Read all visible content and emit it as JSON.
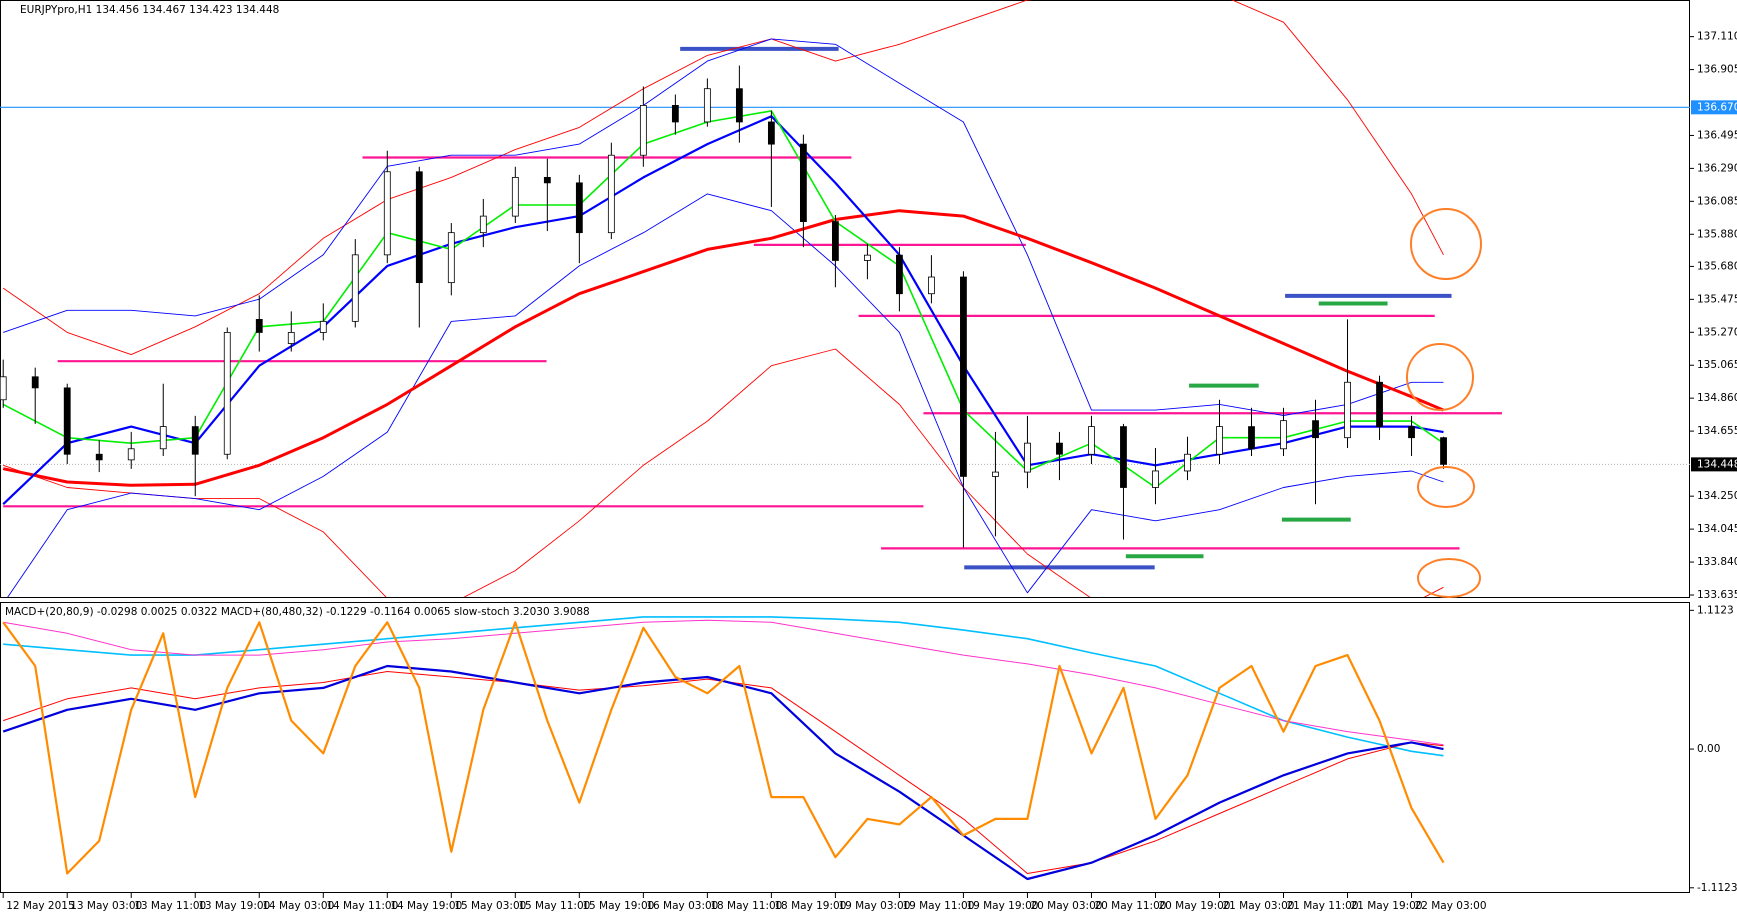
{
  "chart_data": [
    {
      "type": "candlestick",
      "title": "EURJPYpro,H1  134.456 134.467 134.423 134.448",
      "xlim": [
        -0.4,
        210.8
      ],
      "ylim": [
        133.635,
        137.338
      ],
      "yticks": [
        {
          "value": 137.11,
          "label": "137.110"
        },
        {
          "value": 136.905,
          "label": "136.905"
        },
        {
          "value": 136.495,
          "label": "136.495"
        },
        {
          "value": 136.29,
          "label": "136.290"
        },
        {
          "value": 136.085,
          "label": "136.085"
        },
        {
          "value": 135.88,
          "label": "135.880"
        },
        {
          "value": 135.68,
          "label": "135.680"
        },
        {
          "value": 135.475,
          "label": "135.475"
        },
        {
          "value": 135.27,
          "label": "135.270"
        },
        {
          "value": 135.065,
          "label": "135.065"
        },
        {
          "value": 134.86,
          "label": "134.860"
        },
        {
          "value": 134.655,
          "label": "134.655"
        },
        {
          "value": 134.25,
          "label": "134.250"
        },
        {
          "value": 134.045,
          "label": "134.045"
        },
        {
          "value": 133.84,
          "label": "133.840"
        },
        {
          "value": 133.635,
          "label": "133.635"
        }
      ],
      "up_color": "#ffffff",
      "down_color": "#000000",
      "x": [
        0,
        4,
        8,
        12,
        16,
        20,
        24,
        28,
        32,
        36,
        40,
        44,
        48,
        52,
        56,
        60,
        64,
        68,
        72,
        76,
        80,
        84,
        88,
        92,
        96,
        100,
        104,
        108,
        112,
        116,
        120,
        124,
        128,
        132,
        136,
        140,
        144,
        148,
        152,
        156,
        160,
        164,
        168,
        172,
        176,
        180
      ],
      "open": [
        134.85,
        134.993,
        134.924,
        134.511,
        134.476,
        134.545,
        134.683,
        134.511,
        135.35,
        135.2,
        135.269,
        135.338,
        135.752,
        136.269,
        135.579,
        135.89,
        135.993,
        136.234,
        136.2,
        135.89,
        136.372,
        136.682,
        136.579,
        136.786,
        136.579,
        136.441,
        135.959,
        135.717,
        135.75,
        135.51,
        135.614,
        134.373,
        134.4,
        134.58,
        134.511,
        134.683,
        134.304,
        134.407,
        134.511,
        134.683,
        134.545,
        134.72,
        134.614,
        134.959,
        134.683,
        134.614
      ],
      "high": [
        135.1,
        135.05,
        134.95,
        134.6,
        134.65,
        134.95,
        134.75,
        135.3,
        135.5,
        135.4,
        135.45,
        135.85,
        136.4,
        136.3,
        135.95,
        136.1,
        136.3,
        136.35,
        136.25,
        136.45,
        136.8,
        136.75,
        136.85,
        136.93,
        136.65,
        136.5,
        136.0,
        135.82,
        135.8,
        135.75,
        135.65,
        134.65,
        134.75,
        134.65,
        134.75,
        134.7,
        134.55,
        134.62,
        134.85,
        134.8,
        134.8,
        134.85,
        135.35,
        135.0,
        134.75,
        134.62
      ],
      "low": [
        134.8,
        134.7,
        134.45,
        134.4,
        134.42,
        134.5,
        134.25,
        134.48,
        135.15,
        135.15,
        135.22,
        135.3,
        135.7,
        135.3,
        135.5,
        135.8,
        135.95,
        135.9,
        135.7,
        135.85,
        136.3,
        136.5,
        136.55,
        136.45,
        136.05,
        135.8,
        135.55,
        135.6,
        135.4,
        135.45,
        133.93,
        134.0,
        134.3,
        134.35,
        134.45,
        133.98,
        134.2,
        134.35,
        134.45,
        134.5,
        134.5,
        134.2,
        134.55,
        134.6,
        134.5,
        134.42
      ],
      "close": [
        134.993,
        134.924,
        134.511,
        134.476,
        134.545,
        134.683,
        134.511,
        135.269,
        135.269,
        135.269,
        135.338,
        135.752,
        136.269,
        135.579,
        135.89,
        135.993,
        136.234,
        136.2,
        135.89,
        136.372,
        136.682,
        136.579,
        136.786,
        136.579,
        136.441,
        135.959,
        135.717,
        135.75,
        135.51,
        135.614,
        134.373,
        134.4,
        134.58,
        134.511,
        134.683,
        134.304,
        134.407,
        134.511,
        134.683,
        134.545,
        134.72,
        134.614,
        134.959,
        134.683,
        134.614,
        134.448
      ],
      "indicators": {
        "x": [
          0,
          8,
          16,
          24,
          32,
          40,
          48,
          56,
          64,
          72,
          80,
          88,
          96,
          104,
          112,
          120,
          128,
          136,
          144,
          152,
          160,
          168,
          176,
          180
        ],
        "series": [
          {
            "color": "#ff0000",
            "width": 0.9,
            "values": [
              135.545,
              135.269,
              135.131,
              135.304,
              135.51,
              135.855,
              136.096,
              136.234,
              136.407,
              136.545,
              136.786,
              136.993,
              137.096,
              136.958,
              137.062,
              137.2,
              137.338,
              137.372,
              137.372,
              137.372,
              137.2,
              136.717,
              136.131,
              135.752
            ]
          },
          {
            "color": "#ff0000",
            "width": 0.9,
            "values": [
              134.442,
              134.304,
              134.269,
              134.235,
              134.235,
              134.028,
              133.614,
              133.58,
              133.787,
              134.097,
              134.442,
              134.717,
              135.062,
              135.166,
              134.821,
              134.304,
              133.89,
              133.614,
              133.338,
              133.269,
              133.269,
              133.338,
              133.58,
              133.683
            ]
          },
          {
            "color": "#0000ff",
            "width": 0.9,
            "values": [
              135.269,
              135.407,
              135.407,
              135.372,
              135.476,
              135.752,
              136.303,
              136.372,
              136.372,
              136.441,
              136.682,
              136.958,
              137.096,
              137.062,
              136.82,
              136.579,
              135.752,
              134.786,
              134.786,
              134.821,
              134.752,
              134.821,
              134.959,
              134.959
            ]
          },
          {
            "color": "#0000ff",
            "width": 0.9,
            "values": [
              133.58,
              134.166,
              134.269,
              134.235,
              134.166,
              134.373,
              134.649,
              135.338,
              135.372,
              135.683,
              135.89,
              136.131,
              136.027,
              135.683,
              135.269,
              134.304,
              133.649,
              134.166,
              134.097,
              134.166,
              134.304,
              134.373,
              134.407,
              134.338
            ]
          },
          {
            "color": "#ff0000",
            "width": 3,
            "values": [
              134.421,
              134.338,
              134.318,
              134.324,
              134.442,
              134.614,
              134.821,
              135.062,
              135.304,
              135.51,
              135.648,
              135.786,
              135.855,
              135.972,
              136.027,
              135.993,
              135.855,
              135.703,
              135.545,
              135.372,
              135.2,
              135.028,
              134.869,
              134.786
            ]
          },
          {
            "color": "#0000ff",
            "width": 2.2,
            "values": [
              134.2,
              134.58,
              134.683,
              134.58,
              135.062,
              135.304,
              135.683,
              135.821,
              135.924,
              135.993,
              136.234,
              136.441,
              136.614,
              136.2,
              135.752,
              135.062,
              134.442,
              134.511,
              134.442,
              134.511,
              134.58,
              134.683,
              134.683,
              134.649
            ]
          },
          {
            "color": "#00ee00",
            "width": 1.6,
            "values": [
              134.821,
              134.614,
              134.58,
              134.614,
              135.304,
              135.338,
              135.89,
              135.786,
              136.062,
              136.062,
              136.441,
              136.579,
              136.648,
              135.959,
              135.683,
              134.786,
              134.407,
              134.58,
              134.304,
              134.614,
              134.614,
              134.717,
              134.717,
              134.58
            ]
          }
        ]
      },
      "levels": [
        {
          "price": 136.358,
          "from": 44.9,
          "to": 106.0,
          "color": "#ff1493"
        },
        {
          "price": 135.09,
          "from": 6.8,
          "to": 67.9,
          "color": "#ff1493"
        },
        {
          "price": 134.187,
          "from": 0,
          "to": 115.0,
          "color": "#ff1493"
        },
        {
          "price": 135.814,
          "from": 93.8,
          "to": 127.8,
          "color": "#ff1493"
        },
        {
          "price": 135.372,
          "from": 106.9,
          "to": 178.9,
          "color": "#ff1493"
        },
        {
          "price": 134.766,
          "from": 115.0,
          "to": 187.3,
          "color": "#ff1493"
        },
        {
          "price": 133.925,
          "from": 109.7,
          "to": 182.0,
          "color": "#ff1493"
        },
        {
          "price": 137.034,
          "from": 84.6,
          "to": 104.4,
          "color": "#3a52c6"
        },
        {
          "price": 135.497,
          "from": 160.2,
          "to": 181.0,
          "color": "#3a52c6"
        },
        {
          "price": 133.807,
          "from": 120.1,
          "to": 143.9,
          "color": "#3a52c6"
        },
        {
          "price": 135.449,
          "from": 164.4,
          "to": 173.0,
          "color": "#28a745"
        },
        {
          "price": 134.938,
          "from": 148.2,
          "to": 156.9,
          "color": "#28a745"
        },
        {
          "price": 134.104,
          "from": 159.8,
          "to": 168.4,
          "color": "#28a745"
        },
        {
          "price": 133.876,
          "from": 140.3,
          "to": 150.0,
          "color": "#28a745"
        }
      ],
      "price_lines": [
        {
          "value": 136.67,
          "label": "136.670",
          "color": "#1e90ff",
          "label_bg": "#1e90ff",
          "dotted": false
        },
        {
          "value": 134.448,
          "label": "134.448",
          "color": "#b0b0b0",
          "label_bg": "#000000",
          "dotted": true
        }
      ]
    },
    {
      "type": "line",
      "title": "MACD+(20,80,9) -0.0298 0.0025 0.0322  MACD+(80,480,32) -0.1229 -0.1164 0.0065  slow-stoch 3.2030 3.9088",
      "xlim": [
        -0.4,
        210.8
      ],
      "ylim": [
        -1.13,
        1.147
      ],
      "yticks": [
        1.1123,
        {
          "value": 0,
          "label": "0.00"
        },
        -1.1123
      ],
      "xticks": [
        {
          "value": 0,
          "label": "12 May 2015"
        },
        {
          "value": 8,
          "label": "13 May 03:00"
        },
        {
          "value": 16,
          "label": "13 May 11:00"
        },
        {
          "value": 24,
          "label": "13 May 19:00"
        },
        {
          "value": 32,
          "label": "14 May 03:00"
        },
        {
          "value": 40,
          "label": "14 May 11:00"
        },
        {
          "value": 48,
          "label": "14 May 19:00"
        },
        {
          "value": 56,
          "label": "15 May 03:00"
        },
        {
          "value": 64,
          "label": "15 May 11:00"
        },
        {
          "value": 72,
          "label": "15 May 19:00"
        },
        {
          "value": 80,
          "label": "16 May 03:00"
        },
        {
          "value": 88,
          "label": "18 May 11:00"
        },
        {
          "value": 96,
          "label": "18 May 19:00"
        },
        {
          "value": 104,
          "label": "19 May 03:00"
        },
        {
          "value": 112,
          "label": "19 May 11:00"
        },
        {
          "value": 120,
          "label": "19 May 19:00"
        },
        {
          "value": 128,
          "label": "20 May 03:00"
        },
        {
          "value": 136,
          "label": "20 May 11:00"
        },
        {
          "value": 144,
          "label": "20 May 19:00"
        },
        {
          "value": 152,
          "label": "21 May 03:00"
        },
        {
          "value": 160,
          "label": "21 May 11:00"
        },
        {
          "value": 168,
          "label": "21 May 19:00"
        },
        {
          "value": 176,
          "label": "22 May 03:00"
        }
      ],
      "x": [
        0,
        8,
        16,
        24,
        32,
        40,
        48,
        56,
        64,
        72,
        80,
        88,
        96,
        104,
        112,
        120,
        128,
        136,
        144,
        152,
        160,
        168,
        176,
        180
      ],
      "series": [
        {
          "color": "#00bfff",
          "width": 1.6,
          "values": [
            0.841,
            0.797,
            0.753,
            0.753,
            0.797,
            0.841,
            0.885,
            0.928,
            0.972,
            1.016,
            1.06,
            1.06,
            1.06,
            1.042,
            1.016,
            0.954,
            0.885,
            0.771,
            0.666,
            0.447,
            0.228,
            0.096,
            -0.018,
            -0.053
          ]
        },
        {
          "color": "#ff33cc",
          "width": 1,
          "values": [
            1.016,
            0.928,
            0.797,
            0.753,
            0.753,
            0.797,
            0.858,
            0.885,
            0.928,
            0.972,
            1.016,
            1.033,
            1.016,
            0.928,
            0.841,
            0.753,
            0.683,
            0.596,
            0.49,
            0.359,
            0.228,
            0.14,
            0.07,
            0.035
          ]
        },
        {
          "color": "#ff0000",
          "width": 1,
          "values": [
            0.228,
            0.403,
            0.49,
            0.403,
            0.49,
            0.534,
            0.622,
            0.578,
            0.534,
            0.473,
            0.508,
            0.561,
            0.49,
            0.14,
            -0.21,
            -0.56,
            -0.998,
            -0.911,
            -0.736,
            -0.517,
            -0.298,
            -0.079,
            0.053,
            0.026
          ]
        },
        {
          "color": "#0000dd",
          "width": 2.2,
          "values": [
            0.14,
            0.315,
            0.403,
            0.315,
            0.447,
            0.49,
            0.666,
            0.622,
            0.534,
            0.447,
            0.534,
            0.578,
            0.447,
            -0.035,
            -0.342,
            -0.692,
            -1.042,
            -0.911,
            -0.692,
            -0.429,
            -0.21,
            -0.035,
            0.053,
            0.0
          ]
        }
      ],
      "oscillator": {
        "x": [
          0,
          4,
          8,
          12,
          16,
          20,
          24,
          28,
          32,
          36,
          40,
          44,
          48,
          52,
          56,
          60,
          64,
          68,
          72,
          76,
          80,
          84,
          88,
          92,
          96,
          100,
          104,
          108,
          112,
          116,
          120,
          124,
          128,
          132,
          136,
          140,
          144,
          148,
          152,
          156,
          160,
          164,
          168,
          172,
          176,
          180
        ],
        "color": "#ff8c00",
        "width": 2.2,
        "values": [
          1.016,
          0.666,
          -0.998,
          -0.736,
          0.315,
          0.928,
          -0.385,
          0.49,
          1.016,
          0.228,
          -0.035,
          0.666,
          1.016,
          0.49,
          -0.823,
          0.315,
          1.016,
          0.228,
          -0.429,
          0.315,
          0.972,
          0.578,
          0.447,
          0.666,
          -0.385,
          -0.385,
          -0.867,
          -0.56,
          -0.604,
          -0.385,
          -0.692,
          -0.56,
          -0.56,
          0.666,
          -0.035,
          0.49,
          -0.56,
          -0.21,
          0.49,
          0.666,
          0.14,
          0.666,
          0.753,
          0.228,
          -0.473,
          -0.911
        ]
      }
    }
  ]
}
